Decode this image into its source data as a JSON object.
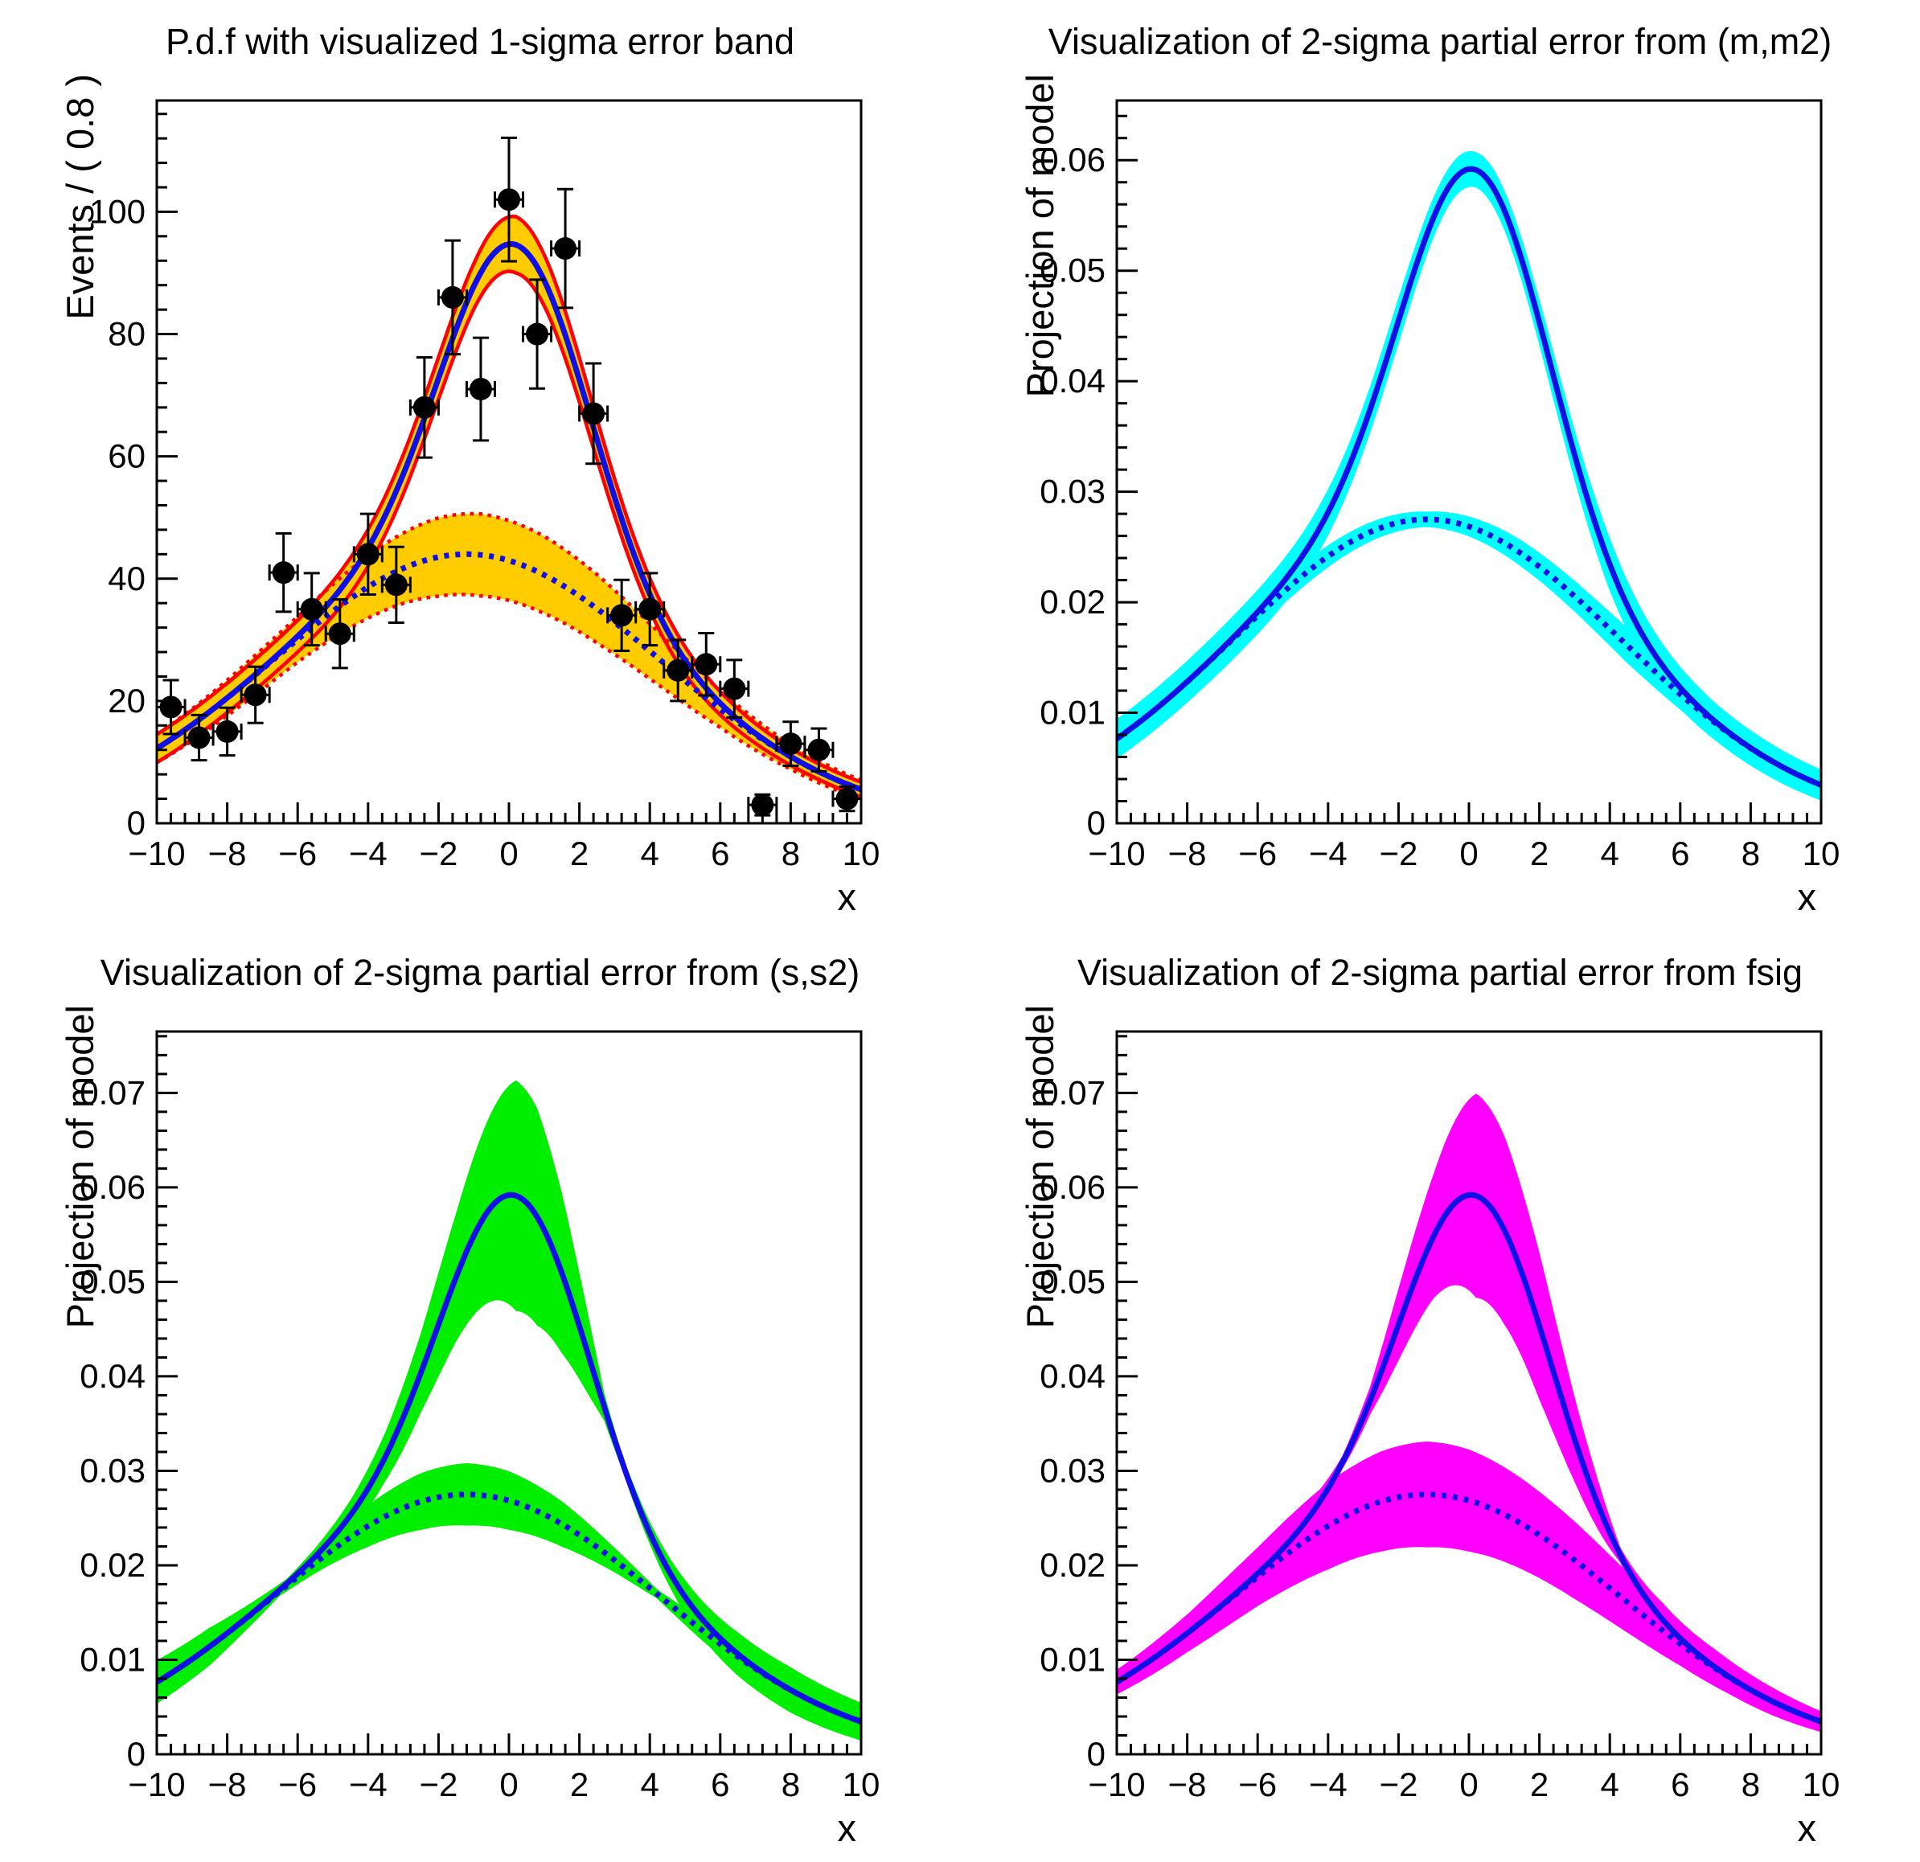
{
  "page": {
    "background": "#ffffff"
  },
  "chart_data": [
    {
      "type": "line",
      "title": "P.d.f with visualized 1-sigma error band",
      "xlabel": "x",
      "ylabel": "Events / ( 0.8 )",
      "xlim": [
        -10,
        10
      ],
      "ylim": [
        0,
        118.2
      ],
      "x_major_ticks": [
        -10,
        -8,
        -6,
        -4,
        -2,
        0,
        2,
        4,
        6,
        8,
        10
      ],
      "x_tick_labels": [
        "−10",
        "−8",
        "−6",
        "−4",
        "−2",
        "0",
        "2",
        "4",
        "6",
        "8",
        "10"
      ],
      "x_minor_step": 0.4,
      "y_major_ticks": [
        0,
        20,
        40,
        60,
        80,
        100
      ],
      "y_tick_labels": [
        "0",
        "20",
        "40",
        "60",
        "80",
        "100"
      ],
      "y_minor_step": 4,
      "grid": false,
      "legend": null,
      "band_color": "#ffcc00",
      "band_edge_color": "#ff0000",
      "curve_color": "#0f0fe6",
      "marker_color": "#000000",
      "scale": 1600,
      "model": {
        "signal": {
          "amp": 0.0325,
          "mean": 0.2,
          "sigma": 2.05
        },
        "background": {
          "amp": 0.0275,
          "mean": -1.2,
          "sigma": 5.5
        }
      },
      "band_total_halfwidth": [
        [
          -10,
          2.3
        ],
        [
          -8,
          2.4
        ],
        [
          -6,
          2.6
        ],
        [
          -4,
          3.0
        ],
        [
          -2.5,
          3.3
        ],
        [
          -1,
          3.7
        ],
        [
          0.2,
          4.6
        ],
        [
          1.5,
          3.9
        ],
        [
          3,
          3.0
        ],
        [
          5,
          2.2
        ],
        [
          7,
          1.6
        ],
        [
          8.5,
          1.3
        ],
        [
          10,
          1.2
        ]
      ],
      "band_bkg_halfwidth": [
        [
          -10,
          2.3
        ],
        [
          -8,
          2.9
        ],
        [
          -6,
          3.7
        ],
        [
          -4,
          5.1
        ],
        [
          -2,
          6.4
        ],
        [
          -0.8,
          6.7
        ],
        [
          1,
          6.3
        ],
        [
          2.5,
          5.6
        ],
        [
          4,
          4.5
        ],
        [
          6,
          3.0
        ],
        [
          8,
          2.0
        ],
        [
          10,
          1.5
        ]
      ],
      "draw_band_edges": true,
      "data_points": {
        "x": [
          -9.6,
          -8.8,
          -8.0,
          -7.2,
          -6.4,
          -5.6,
          -4.8,
          -4.0,
          -3.2,
          -2.4,
          -1.6,
          -0.8,
          0.0,
          0.8,
          1.6,
          2.4,
          3.2,
          4.0,
          4.8,
          5.6,
          6.4,
          7.2,
          8.0,
          8.8,
          9.6
        ],
        "y": [
          19,
          14,
          15,
          21,
          41,
          35,
          31,
          44,
          39,
          68,
          86,
          71,
          102,
          80,
          94,
          67,
          34,
          35,
          25,
          26,
          22,
          3,
          13,
          12,
          4
        ],
        "yerr": [
          4.4,
          3.7,
          3.9,
          4.6,
          6.4,
          5.9,
          5.6,
          6.6,
          6.2,
          8.2,
          9.3,
          8.4,
          10.1,
          8.9,
          9.7,
          8.2,
          5.8,
          5.9,
          5.0,
          5.1,
          4.7,
          1.7,
          3.6,
          3.5,
          2.0
        ],
        "xerr": 0.4
      }
    },
    {
      "type": "line",
      "title": "Visualization of 2-sigma partial error from (m,m2)",
      "xlabel": "x",
      "ylabel": "Projection of model",
      "xlim": [
        -10,
        10
      ],
      "ylim": [
        0,
        0.0654
      ],
      "x_major_ticks": [
        -10,
        -8,
        -6,
        -4,
        -2,
        0,
        2,
        4,
        6,
        8,
        10
      ],
      "x_tick_labels": [
        "−10",
        "−8",
        "−6",
        "−4",
        "−2",
        "0",
        "2",
        "4",
        "6",
        "8",
        "10"
      ],
      "x_minor_step": 0.4,
      "y_major_ticks": [
        0,
        0.01,
        0.02,
        0.03,
        0.04,
        0.05,
        0.06
      ],
      "y_tick_labels": [
        "0",
        "0.01",
        "0.02",
        "0.03",
        "0.04",
        "0.05",
        "0.06"
      ],
      "y_minor_step": 0.002,
      "grid": false,
      "legend": null,
      "band_color": "#00ffff",
      "band_edge_color": null,
      "curve_color": "#0f0fe6",
      "marker_color": null,
      "scale": 1,
      "model": {
        "signal": {
          "amp": 0.0325,
          "mean": 0.2,
          "sigma": 2.05
        },
        "background": {
          "amp": 0.0275,
          "mean": -1.2,
          "sigma": 5.5
        }
      },
      "band_total_halfwidth": [
        [
          -10,
          0.0018
        ],
        [
          -8,
          0.0019
        ],
        [
          -6,
          0.002
        ],
        [
          -4,
          0.0021
        ],
        [
          -2,
          0.0021
        ],
        [
          -0.5,
          0.0017
        ],
        [
          0.2,
          0.0016
        ],
        [
          1,
          0.0018
        ],
        [
          2,
          0.0021
        ],
        [
          3,
          0.0023
        ],
        [
          4,
          0.0024
        ],
        [
          5.5,
          0.002
        ],
        [
          7,
          0.0017
        ],
        [
          10,
          0.0014
        ]
      ],
      "band_bkg_halfwidth": [
        [
          -10,
          0.0013
        ],
        [
          -7,
          0.0012
        ],
        [
          -4,
          0.001
        ],
        [
          -2.2,
          0.0008
        ],
        [
          -1.2,
          0.0007
        ],
        [
          0,
          0.0009
        ],
        [
          1.5,
          0.0012
        ],
        [
          3,
          0.0014
        ],
        [
          4.5,
          0.0016
        ],
        [
          6,
          0.0014
        ],
        [
          8,
          0.0012
        ],
        [
          10,
          0.0011
        ]
      ],
      "draw_band_edges": false,
      "data_points": null
    },
    {
      "type": "line",
      "title": "Visualization of 2-sigma partial error from (s,s2)",
      "xlabel": "x",
      "ylabel": "Projection of model",
      "xlim": [
        -10,
        10
      ],
      "ylim": [
        0,
        0.0765
      ],
      "x_major_ticks": [
        -10,
        -8,
        -6,
        -4,
        -2,
        0,
        2,
        4,
        6,
        8,
        10
      ],
      "x_tick_labels": [
        "−10",
        "−8",
        "−6",
        "−4",
        "−2",
        "0",
        "2",
        "4",
        "6",
        "8",
        "10"
      ],
      "x_minor_step": 0.4,
      "y_major_ticks": [
        0,
        0.01,
        0.02,
        0.03,
        0.04,
        0.05,
        0.06,
        0.07
      ],
      "y_tick_labels": [
        "0",
        "0.01",
        "0.02",
        "0.03",
        "0.04",
        "0.05",
        "0.06",
        "0.07"
      ],
      "y_minor_step": 0.002,
      "grid": false,
      "legend": null,
      "band_color": "#00ee00",
      "band_edge_color": null,
      "curve_color": "#0f0fe6",
      "marker_color": null,
      "scale": 1,
      "model": {
        "signal": {
          "amp": 0.0325,
          "mean": 0.2,
          "sigma": 2.05
        },
        "background": {
          "amp": 0.0275,
          "mean": -1.2,
          "sigma": 5.5
        }
      },
      "band_total_halfwidth": [
        [
          -10,
          0.0023
        ],
        [
          -8.5,
          0.002
        ],
        [
          -7.5,
          0.0013
        ],
        [
          -6.3,
          0.0005
        ],
        [
          -5.5,
          0.0009
        ],
        [
          -4.5,
          0.0016
        ],
        [
          -3.5,
          0.0026
        ],
        [
          -2.5,
          0.0042
        ],
        [
          -1.5,
          0.0068
        ],
        [
          -0.5,
          0.01
        ],
        [
          0.2,
          0.0122
        ],
        [
          0.8,
          0.0115
        ],
        [
          1.5,
          0.0085
        ],
        [
          2.2,
          0.0045
        ],
        [
          2.7,
          0.0015
        ],
        [
          3.2,
          0.0008
        ],
        [
          4,
          0.0012
        ],
        [
          5,
          0.0018
        ],
        [
          6.5,
          0.0023
        ],
        [
          8,
          0.0024
        ],
        [
          10,
          0.002
        ]
      ],
      "band_bkg_halfwidth": [
        [
          -10,
          0.0021
        ],
        [
          -8.5,
          0.0016
        ],
        [
          -7.3,
          0.0008
        ],
        [
          -6.5,
          0.0005
        ],
        [
          -5.5,
          0.0011
        ],
        [
          -4,
          0.0022
        ],
        [
          -2.5,
          0.003
        ],
        [
          -1.2,
          0.0033
        ],
        [
          0,
          0.0031
        ],
        [
          1.5,
          0.0024
        ],
        [
          3,
          0.0013
        ],
        [
          4.2,
          0.0005
        ],
        [
          5.5,
          0.0011
        ],
        [
          7,
          0.0016
        ],
        [
          8.5,
          0.0019
        ],
        [
          10,
          0.002
        ]
      ],
      "draw_band_edges": false,
      "data_points": null
    },
    {
      "type": "line",
      "title": "Visualization of 2-sigma partial error from fsig",
      "xlabel": "x",
      "ylabel": "Projection of model",
      "xlim": [
        -10,
        10
      ],
      "ylim": [
        0,
        0.0765
      ],
      "x_major_ticks": [
        -10,
        -8,
        -6,
        -4,
        -2,
        0,
        2,
        4,
        6,
        8,
        10
      ],
      "x_tick_labels": [
        "−10",
        "−8",
        "−6",
        "−4",
        "−2",
        "0",
        "2",
        "4",
        "6",
        "8",
        "10"
      ],
      "x_minor_step": 0.4,
      "y_major_ticks": [
        0,
        0.01,
        0.02,
        0.03,
        0.04,
        0.05,
        0.06,
        0.07
      ],
      "y_tick_labels": [
        "0",
        "0.01",
        "0.02",
        "0.03",
        "0.04",
        "0.05",
        "0.06",
        "0.07"
      ],
      "y_minor_step": 0.002,
      "grid": false,
      "legend": null,
      "band_color": "#ff00ff",
      "band_edge_color": null,
      "curve_color": "#0f0fe6",
      "marker_color": null,
      "scale": 1,
      "model": {
        "signal": {
          "amp": 0.0325,
          "mean": 0.2,
          "sigma": 2.05
        },
        "background": {
          "amp": 0.0275,
          "mean": -1.2,
          "sigma": 5.5
        }
      },
      "band_total_halfwidth": [
        [
          -10,
          0.0013
        ],
        [
          -8,
          0.0017
        ],
        [
          -6,
          0.0021
        ],
        [
          -4.5,
          0.0015
        ],
        [
          -3.6,
          0.0007
        ],
        [
          -2.8,
          0.0015
        ],
        [
          -2,
          0.0038
        ],
        [
          -1,
          0.0066
        ],
        [
          0.2,
          0.0108
        ],
        [
          1,
          0.01
        ],
        [
          2,
          0.0078
        ],
        [
          3,
          0.0045
        ],
        [
          4.3,
          0.0008
        ],
        [
          5.5,
          0.0018
        ],
        [
          7,
          0.0019
        ],
        [
          8.5,
          0.0015
        ],
        [
          10,
          0.0011
        ]
      ],
      "band_bkg_halfwidth": [
        [
          -10,
          0.0013
        ],
        [
          -8,
          0.002
        ],
        [
          -6,
          0.0031
        ],
        [
          -4,
          0.0046
        ],
        [
          -2.5,
          0.0053
        ],
        [
          -1.2,
          0.0056
        ],
        [
          0,
          0.0054
        ],
        [
          1.5,
          0.0048
        ],
        [
          3,
          0.0041
        ],
        [
          4.5,
          0.0032
        ],
        [
          6,
          0.0023
        ],
        [
          7.5,
          0.0017
        ],
        [
          9,
          0.0012
        ],
        [
          10,
          0.001
        ]
      ],
      "draw_band_edges": false,
      "data_points": null
    }
  ]
}
